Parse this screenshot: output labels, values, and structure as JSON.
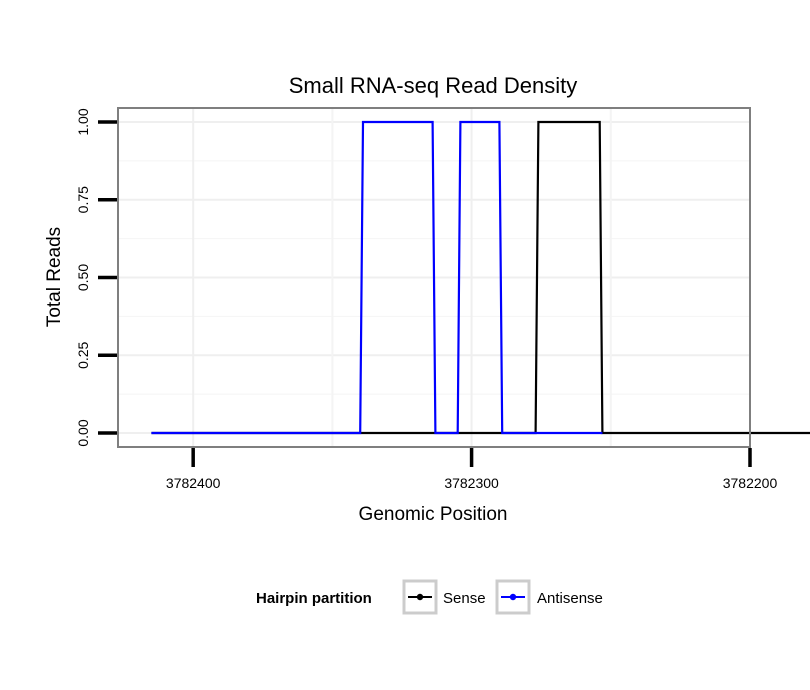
{
  "chart_data": {
    "type": "line",
    "title": "Small RNA-seq Read Density",
    "xlabel": "Genomic Position",
    "ylabel": "Total Reads",
    "xlim": [
      3782427,
      3782200
    ],
    "ylim": [
      -0.045,
      1.045
    ],
    "x_reversed": true,
    "grid": true,
    "x_ticks": [
      3782400,
      3782300,
      3782200
    ],
    "x_tick_labels": [
      "3782400",
      "3782300",
      "3782200"
    ],
    "y_ticks": [
      0,
      0.25,
      0.5,
      0.75,
      1.0
    ],
    "y_tick_labels": [
      "0.00",
      "0.25",
      "0.50",
      "0.75",
      "1.00"
    ],
    "legend": {
      "title": "Hairpin partition",
      "position": "bottom",
      "entries": [
        "Sense",
        "Antisense"
      ]
    },
    "series": [
      {
        "name": "Sense",
        "color": "#000000",
        "x": [
          3782415,
          3782313,
          3782277,
          3782276,
          3782254,
          3782253,
          3782167
        ],
        "y": [
          0,
          0,
          0,
          1,
          1,
          0,
          0
        ]
      },
      {
        "name": "Antisense",
        "color": "#0000ff",
        "x": [
          3782415,
          3782340,
          3782339,
          3782314,
          3782313,
          3782305,
          3782304,
          3782290,
          3782289,
          3782254,
          3782253
        ],
        "y": [
          0,
          0,
          1,
          1,
          0,
          0,
          1,
          1,
          0,
          0,
          0
        ]
      }
    ]
  }
}
